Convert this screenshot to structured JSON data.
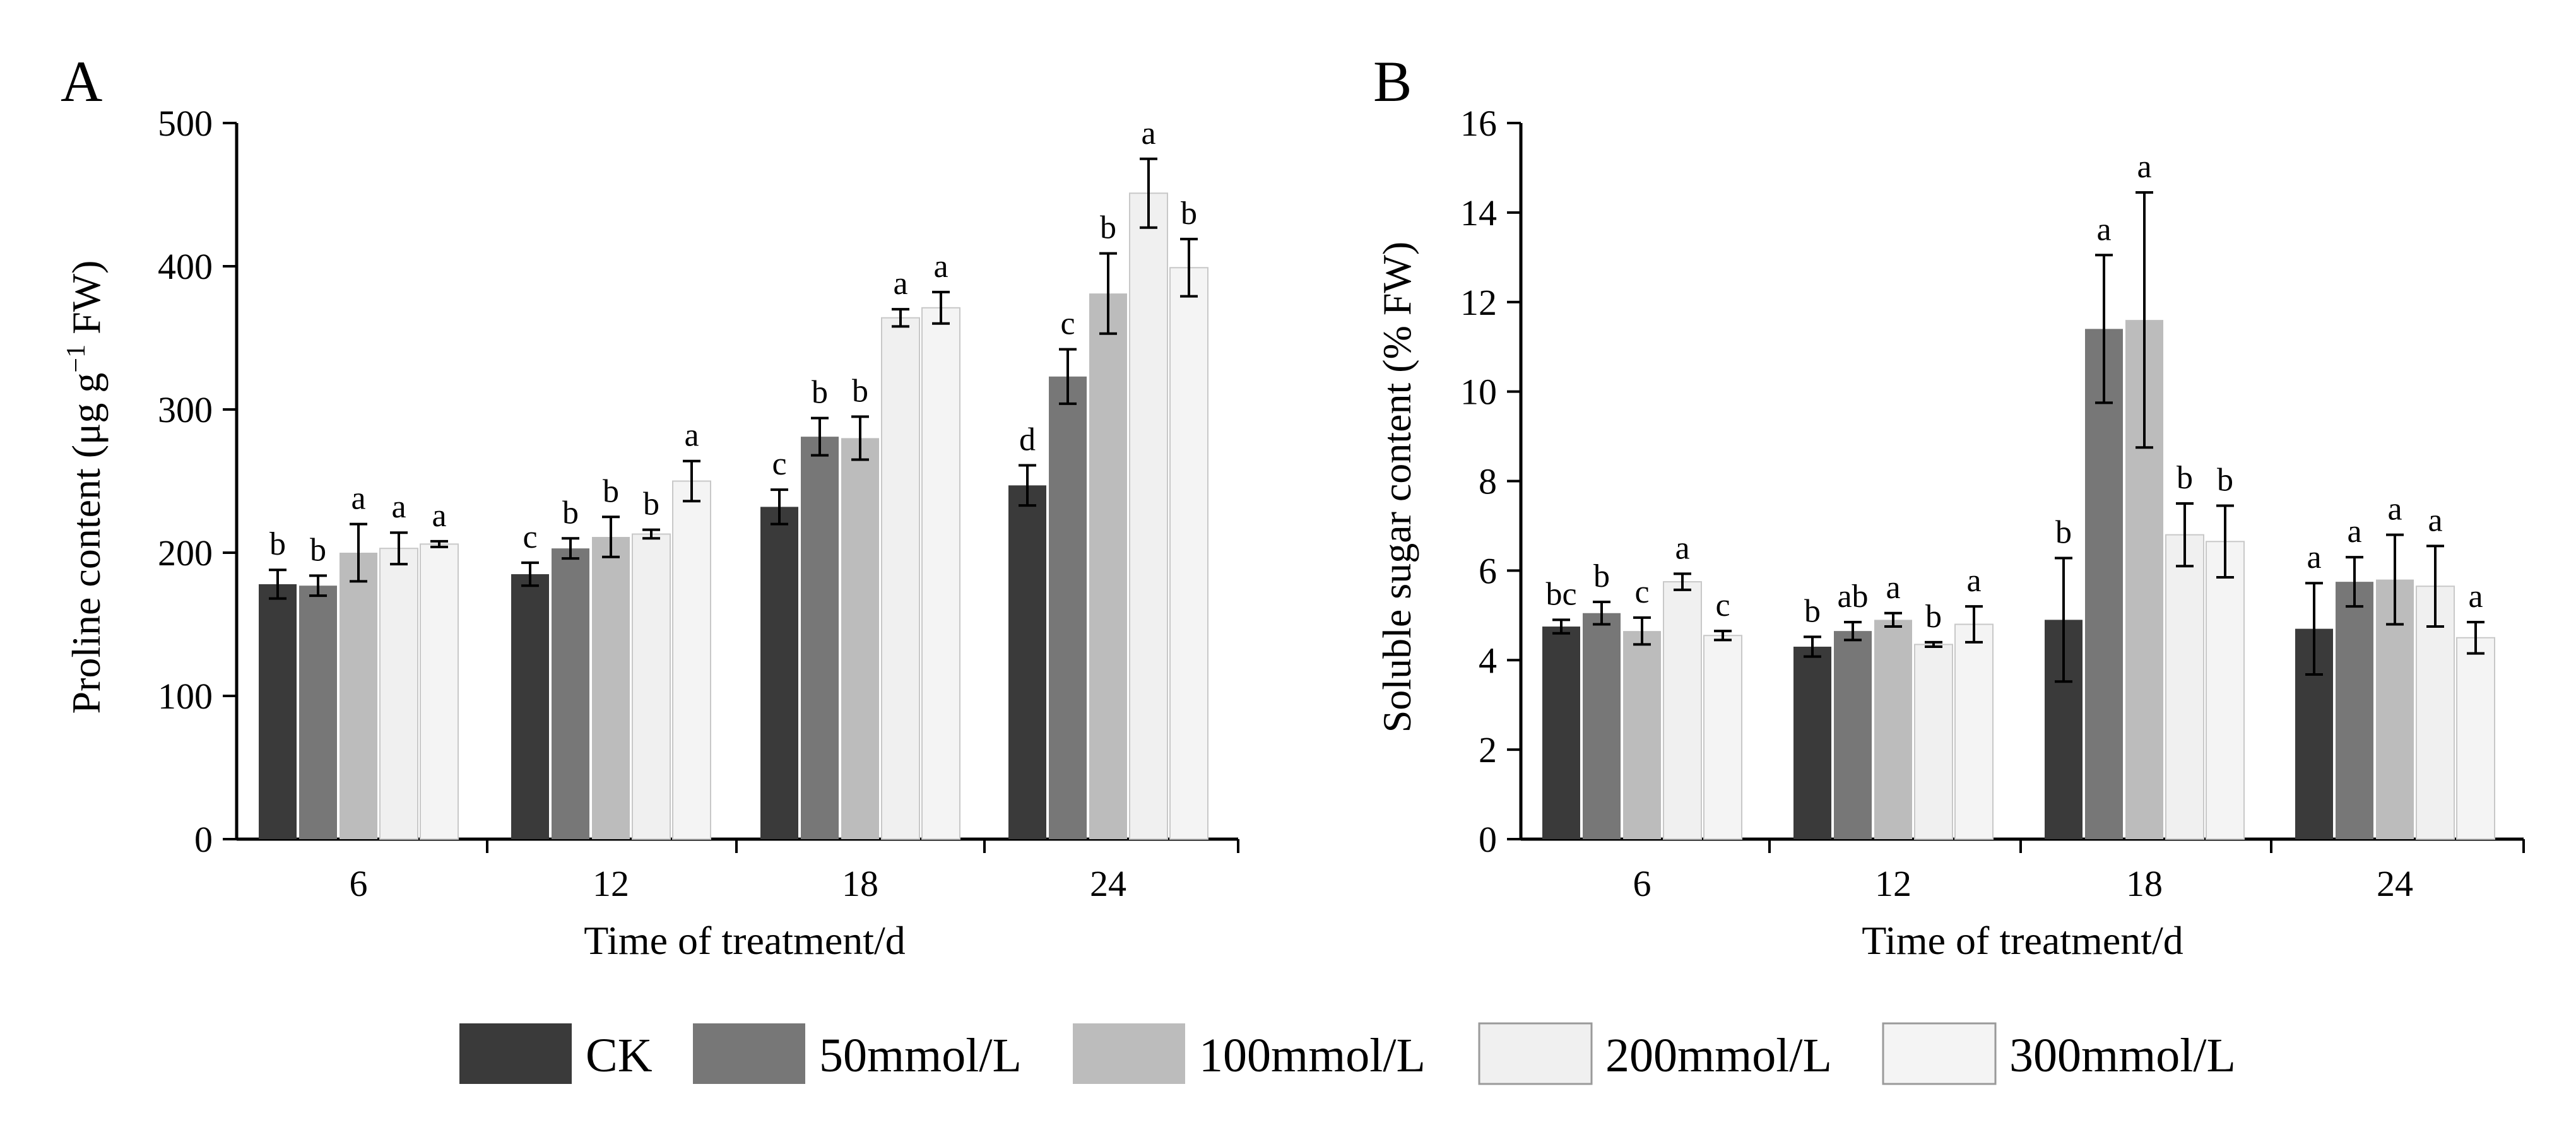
{
  "legend": {
    "entries": [
      {
        "name": "CK",
        "color": "#3a3a3a"
      },
      {
        "name": "50mmol/L",
        "color": "#777777"
      },
      {
        "name": "100mmol/L",
        "color": "#bcbcbc"
      },
      {
        "name": "200mmol/L",
        "color": "#f0f0f0"
      },
      {
        "name": "300mmol/L",
        "color": "#f4f4f4"
      }
    ]
  },
  "chart_data": [
    {
      "type": "bar",
      "panel": "A",
      "xlabel": "Time of treatment/d",
      "ylabel_main": "Proline content (μg g",
      "ylabel_sup": "−1",
      "ylabel_tail": " FW)",
      "categories": [
        "6",
        "12",
        "18",
        "24"
      ],
      "ylim": [
        0,
        500
      ],
      "yticks": [
        "0",
        "100",
        "200",
        "300",
        "400",
        "500"
      ],
      "series": [
        {
          "name": "CK",
          "values": [
            178,
            185,
            232,
            247
          ],
          "errors": [
            10,
            8,
            12,
            14
          ],
          "letters": [
            "b",
            "c",
            "c",
            "d"
          ]
        },
        {
          "name": "50mmol/L",
          "values": [
            177,
            203,
            281,
            323
          ],
          "errors": [
            7,
            7,
            13,
            19
          ],
          "letters": [
            "b",
            "b",
            "b",
            "c"
          ]
        },
        {
          "name": "100mmol/L",
          "values": [
            200,
            211,
            280,
            381
          ],
          "errors": [
            20,
            14,
            15,
            28
          ],
          "letters": [
            "a",
            "b",
            "b",
            "b"
          ]
        },
        {
          "name": "200mmol/L",
          "values": [
            203,
            213,
            364,
            451
          ],
          "errors": [
            11,
            3,
            6,
            24
          ],
          "letters": [
            "a",
            "b",
            "a",
            "a"
          ]
        },
        {
          "name": "300mmol/L",
          "values": [
            206,
            250,
            371,
            399
          ],
          "errors": [
            2,
            14,
            11,
            20
          ],
          "letters": [
            "a",
            "a",
            "a",
            "b"
          ]
        }
      ]
    },
    {
      "type": "bar",
      "panel": "B",
      "xlabel": "Time of treatment/d",
      "ylabel": "Soluble sugar content (% FW)",
      "categories": [
        "6",
        "12",
        "18",
        "24"
      ],
      "ylim": [
        0,
        16
      ],
      "yticks": [
        "0",
        "2",
        "4",
        "6",
        "8",
        "10",
        "12",
        "14",
        "16"
      ],
      "series": [
        {
          "name": "CK",
          "values": [
            4.75,
            4.3,
            4.9,
            4.7
          ],
          "errors": [
            0.15,
            0.22,
            1.38,
            1.02
          ],
          "letters": [
            "bc",
            "b",
            "b",
            "a"
          ]
        },
        {
          "name": "50mmol/L",
          "values": [
            5.05,
            4.65,
            11.4,
            5.75
          ],
          "errors": [
            0.25,
            0.2,
            1.65,
            0.55
          ],
          "letters": [
            "b",
            "ab",
            "a",
            "a"
          ]
        },
        {
          "name": "100mmol/L",
          "values": [
            4.65,
            4.9,
            11.6,
            5.8
          ],
          "errors": [
            0.3,
            0.15,
            2.85,
            1.0
          ],
          "letters": [
            "c",
            "a",
            "a",
            "a"
          ]
        },
        {
          "name": "200mmol/L",
          "values": [
            5.75,
            4.35,
            6.8,
            5.65
          ],
          "errors": [
            0.18,
            0.05,
            0.7,
            0.9
          ],
          "letters": [
            "a",
            "b",
            "b",
            "a"
          ]
        },
        {
          "name": "300mmol/L",
          "values": [
            4.55,
            4.8,
            6.65,
            4.5
          ],
          "errors": [
            0.1,
            0.4,
            0.8,
            0.35
          ],
          "letters": [
            "c",
            "a",
            "b",
            "a"
          ]
        }
      ]
    }
  ]
}
